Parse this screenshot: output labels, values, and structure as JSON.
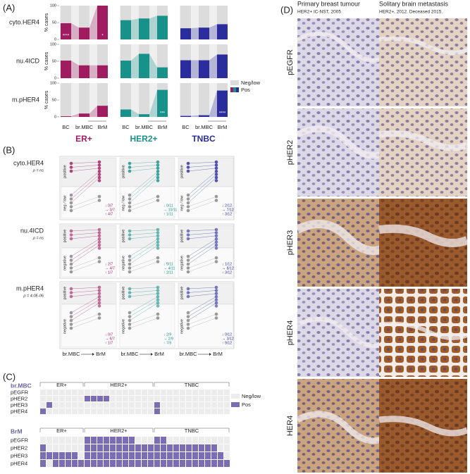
{
  "panel_a": {
    "label": "(A)",
    "y_axis_label": "% cases",
    "ylim": [
      0,
      100
    ],
    "yticks": [
      0,
      50,
      100
    ],
    "categories": [
      "BC",
      "br.MBC",
      "BrM"
    ],
    "legend": [
      "Neg/low",
      "Pos"
    ],
    "groups": [
      {
        "name": "ER+",
        "color": "#a01c60"
      },
      {
        "name": "HER2+",
        "color": "#17918a"
      },
      {
        "name": "TNBC",
        "color": "#2b2d9c"
      }
    ],
    "rows": [
      {
        "name": "cyto.HER4",
        "series": [
          {
            "values": [
              48,
              35,
              100
            ],
            "marks": [
              "****",
              null,
              "*"
            ]
          },
          {
            "values": [
              57,
              62,
              70
            ],
            "marks": [
              null,
              null,
              null
            ]
          },
          {
            "values": [
              33,
              35,
              45
            ],
            "marks": [
              null,
              null,
              null
            ]
          }
        ]
      },
      {
        "name": "nu.4ICD",
        "series": [
          {
            "values": [
              52,
              38,
              38
            ],
            "marks": [
              null,
              null,
              null
            ]
          },
          {
            "values": [
              52,
              72,
              32
            ],
            "marks": [
              null,
              null,
              null
            ]
          },
          {
            "values": [
              53,
              53,
              70
            ],
            "marks": [
              null,
              null,
              null
            ]
          }
        ]
      },
      {
        "name": "m.pHER4",
        "series": [
          {
            "values": [
              2,
              10,
              33
            ],
            "marks": [
              null,
              null,
              null
            ]
          },
          {
            "values": [
              22,
              8,
              80
            ],
            "marks": [
              null,
              null,
              "***"
            ]
          },
          {
            "values": [
              3,
              5,
              78
            ],
            "marks": [
              null,
              null,
              "****"
            ]
          }
        ]
      }
    ]
  },
  "panel_b": {
    "label": "(B)",
    "x_labels": [
      "br.MBC",
      "BrM"
    ],
    "rows": [
      {
        "name": "cyto.HER4",
        "rho": "ρ = ns",
        "sections": [
          "positive",
          "neg / low"
        ],
        "cells": [
          [
            "↓ 0/7",
            "→ 3/7",
            "↑ 4/7"
          ],
          [
            "↓ 0/11",
            "→ 10/11",
            "↑ 1/11"
          ],
          [
            "↓ 2/12",
            "→ 7/12",
            "↑ 3/12"
          ]
        ]
      },
      {
        "name": "nu.4ICD",
        "rho": "ρ = ns",
        "sections": [
          "positive",
          "negative"
        ],
        "cells": [
          [
            "↓ 2/7",
            "→ 4/7",
            "↑ 1/7"
          ],
          [
            "↓ 5/11",
            "→ 4/11",
            "↑ 2/11"
          ],
          [
            "↓ 1/12",
            "→ 8/12",
            "↑ 3/12"
          ]
        ]
      },
      {
        "name": "m.pHER4",
        "rho": "ρ = 4.0E-06",
        "sections": [
          "positive",
          "negative"
        ],
        "cells": [
          [
            "↓ 0/7",
            "→ 6/7",
            "↑ 1/7"
          ],
          [
            "↓ 2/9",
            "→ 2/9",
            "↑ 7/9"
          ],
          [
            "↓ 0/12",
            "→ 3/12",
            "↑ 9/12"
          ]
        ]
      }
    ]
  },
  "panel_c": {
    "label": "(C)",
    "legend": [
      "Neg/low",
      "Pos"
    ],
    "groups": [
      "ER+",
      "HER2+",
      "TNBC"
    ],
    "markers": [
      "pEGFR",
      "pHER2",
      "pHER3",
      "pHER4"
    ],
    "blocks": [
      {
        "name": "br.MBC",
        "rows": [
          [
            0,
            0,
            0,
            0,
            0,
            0,
            0,
            0,
            0,
            0,
            0,
            0,
            0,
            0,
            0,
            0,
            0,
            0,
            0,
            0,
            0,
            0,
            0,
            0,
            0,
            0,
            0,
            0,
            0,
            0
          ],
          [
            0,
            0,
            0,
            0,
            0,
            0,
            0,
            1,
            1,
            1,
            1,
            0,
            0,
            0,
            0,
            0,
            0,
            0,
            0,
            0,
            0,
            0,
            0,
            0,
            0,
            0,
            0,
            0,
            0,
            0
          ],
          [
            0,
            1,
            0,
            0,
            0,
            0,
            0,
            0,
            0,
            0,
            0,
            0,
            0,
            0,
            0,
            0,
            0,
            0,
            1,
            0,
            0,
            0,
            0,
            0,
            0,
            0,
            0,
            0,
            0,
            0
          ],
          [
            1,
            0,
            0,
            0,
            0,
            0,
            0,
            0,
            0,
            0,
            0,
            0,
            0,
            0,
            0,
            0,
            0,
            0,
            1,
            0,
            0,
            0,
            0,
            0,
            0,
            0,
            0,
            0,
            0,
            0
          ]
        ]
      },
      {
        "name": "BrM",
        "rows": [
          [
            0,
            0,
            0,
            0,
            0,
            0,
            0,
            1,
            1,
            1,
            1,
            1,
            1,
            1,
            1,
            0,
            0,
            0,
            1,
            1,
            0,
            0,
            0,
            0,
            0,
            0,
            0,
            0,
            0,
            0
          ],
          [
            1,
            0,
            0,
            0,
            0,
            0,
            0,
            1,
            1,
            1,
            1,
            1,
            1,
            1,
            1,
            1,
            1,
            1,
            1,
            1,
            1,
            1,
            1,
            1,
            1,
            1,
            1,
            1,
            0,
            0
          ],
          [
            1,
            1,
            1,
            1,
            1,
            1,
            0,
            1,
            1,
            1,
            1,
            1,
            1,
            1,
            1,
            1,
            1,
            1,
            1,
            1,
            1,
            1,
            1,
            1,
            1,
            1,
            1,
            1,
            1,
            0
          ],
          [
            1,
            0,
            1,
            1,
            1,
            1,
            1,
            1,
            1,
            1,
            1,
            1,
            1,
            1,
            1,
            1,
            1,
            1,
            1,
            1,
            1,
            1,
            1,
            1,
            1,
            1,
            1,
            1,
            1,
            1
          ]
        ]
      }
    ]
  },
  "panel_d": {
    "label": "(D)",
    "columns": [
      {
        "title": "Primary breast tumour",
        "subtitle": "HER2+ IC-NST, 2005"
      },
      {
        "title": "Solitary brain metastasis",
        "subtitle": "HER2+, 2012. Deceased 2015."
      }
    ],
    "rows": [
      "pEGFR",
      "pHER2",
      "pHER3",
      "pHER4",
      "HER4"
    ]
  }
}
